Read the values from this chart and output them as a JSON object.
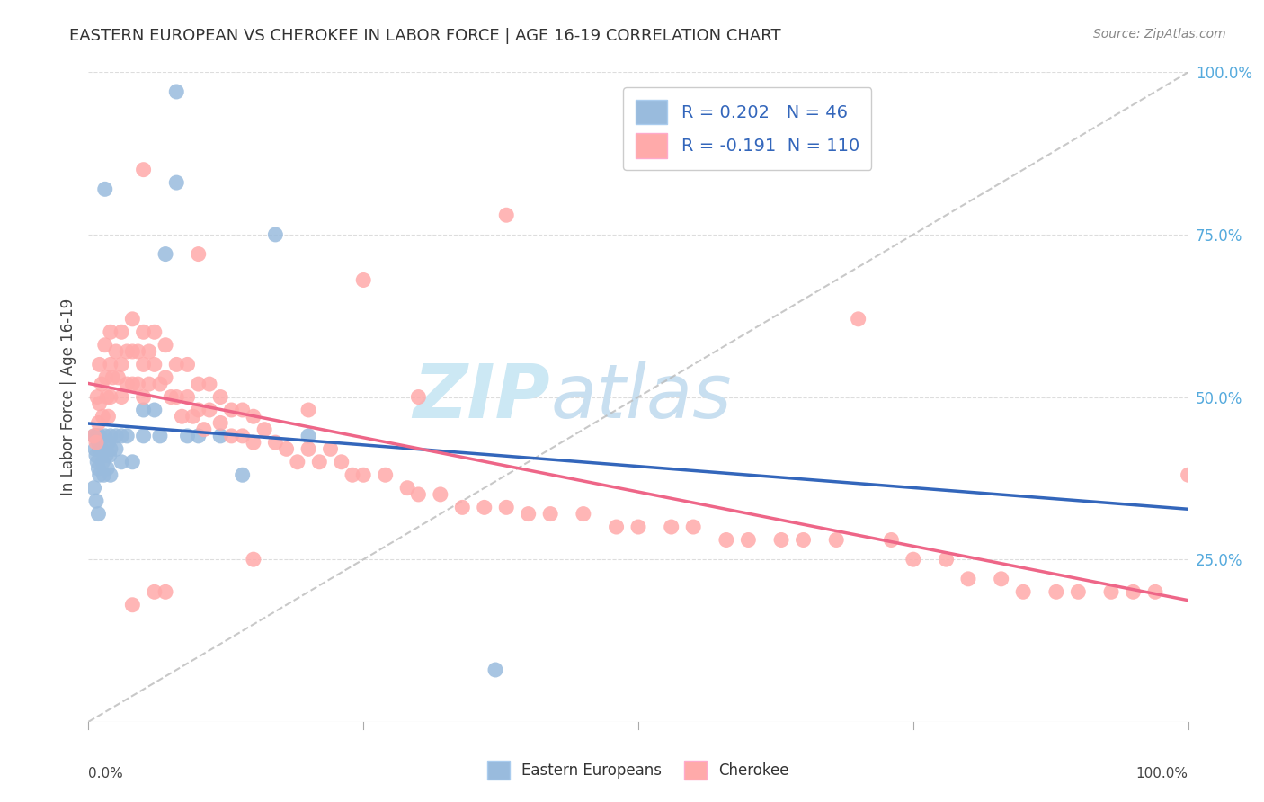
{
  "title": "EASTERN EUROPEAN VS CHEROKEE IN LABOR FORCE | AGE 16-19 CORRELATION CHART",
  "source": "Source: ZipAtlas.com",
  "ylabel": "In Labor Force | Age 16-19",
  "y_tick_labels": [
    "25.0%",
    "50.0%",
    "75.0%",
    "100.0%"
  ],
  "y_ticks": [
    0.25,
    0.5,
    0.75,
    1.0
  ],
  "r_eastern": 0.202,
  "n_eastern": 46,
  "r_cherokee": -0.191,
  "n_cherokee": 110,
  "blue_scatter_color": "#99BBDD",
  "pink_scatter_color": "#FFAAAA",
  "blue_line_color": "#3366BB",
  "pink_line_color": "#EE6688",
  "dash_line_color": "#BBBBBB",
  "watermark_color": "#CCE8F4",
  "legend_blue_text_color": "#3366BB",
  "legend_pink_text_color": "#333333",
  "right_tick_color": "#55AADD",
  "eastern_x": [
    0.005,
    0.006,
    0.007,
    0.007,
    0.008,
    0.008,
    0.009,
    0.009,
    0.01,
    0.01,
    0.01,
    0.012,
    0.013,
    0.014,
    0.015,
    0.016,
    0.017,
    0.018,
    0.019,
    0.02,
    0.02,
    0.02,
    0.025,
    0.025,
    0.03,
    0.03,
    0.035,
    0.04,
    0.05,
    0.05,
    0.06,
    0.065,
    0.07,
    0.08,
    0.09,
    0.1,
    0.12,
    0.14,
    0.17,
    0.2,
    0.37,
    0.005,
    0.007,
    0.009,
    0.015,
    0.08
  ],
  "eastern_y": [
    0.44,
    0.42,
    0.44,
    0.41,
    0.44,
    0.4,
    0.43,
    0.39,
    0.44,
    0.42,
    0.38,
    0.42,
    0.4,
    0.38,
    0.44,
    0.41,
    0.39,
    0.43,
    0.41,
    0.44,
    0.42,
    0.38,
    0.44,
    0.42,
    0.44,
    0.4,
    0.44,
    0.4,
    0.48,
    0.44,
    0.48,
    0.44,
    0.72,
    0.97,
    0.44,
    0.44,
    0.44,
    0.38,
    0.75,
    0.44,
    0.08,
    0.36,
    0.34,
    0.32,
    0.82,
    0.83
  ],
  "cherokee_x": [
    0.005,
    0.007,
    0.008,
    0.009,
    0.01,
    0.01,
    0.012,
    0.013,
    0.015,
    0.016,
    0.017,
    0.018,
    0.02,
    0.02,
    0.02,
    0.022,
    0.025,
    0.027,
    0.03,
    0.03,
    0.03,
    0.035,
    0.035,
    0.04,
    0.04,
    0.04,
    0.045,
    0.045,
    0.05,
    0.05,
    0.05,
    0.055,
    0.055,
    0.06,
    0.06,
    0.065,
    0.07,
    0.07,
    0.075,
    0.08,
    0.08,
    0.085,
    0.09,
    0.09,
    0.095,
    0.1,
    0.1,
    0.105,
    0.11,
    0.11,
    0.12,
    0.12,
    0.13,
    0.13,
    0.14,
    0.14,
    0.15,
    0.15,
    0.16,
    0.17,
    0.18,
    0.19,
    0.2,
    0.21,
    0.22,
    0.23,
    0.24,
    0.25,
    0.27,
    0.29,
    0.3,
    0.32,
    0.34,
    0.36,
    0.38,
    0.4,
    0.42,
    0.45,
    0.48,
    0.5,
    0.53,
    0.55,
    0.58,
    0.6,
    0.63,
    0.65,
    0.68,
    0.7,
    0.73,
    0.75,
    0.78,
    0.8,
    0.83,
    0.85,
    0.88,
    0.9,
    0.93,
    0.95,
    0.97,
    1.0,
    0.38,
    0.3,
    0.25,
    0.2,
    0.15,
    0.1,
    0.05,
    0.07,
    0.06,
    0.04
  ],
  "cherokee_y": [
    0.44,
    0.43,
    0.5,
    0.46,
    0.55,
    0.49,
    0.52,
    0.47,
    0.58,
    0.53,
    0.5,
    0.47,
    0.6,
    0.55,
    0.5,
    0.53,
    0.57,
    0.53,
    0.6,
    0.55,
    0.5,
    0.57,
    0.52,
    0.62,
    0.57,
    0.52,
    0.57,
    0.52,
    0.6,
    0.55,
    0.5,
    0.57,
    0.52,
    0.6,
    0.55,
    0.52,
    0.58,
    0.53,
    0.5,
    0.55,
    0.5,
    0.47,
    0.55,
    0.5,
    0.47,
    0.52,
    0.48,
    0.45,
    0.52,
    0.48,
    0.5,
    0.46,
    0.48,
    0.44,
    0.48,
    0.44,
    0.47,
    0.43,
    0.45,
    0.43,
    0.42,
    0.4,
    0.42,
    0.4,
    0.42,
    0.4,
    0.38,
    0.38,
    0.38,
    0.36,
    0.35,
    0.35,
    0.33,
    0.33,
    0.33,
    0.32,
    0.32,
    0.32,
    0.3,
    0.3,
    0.3,
    0.3,
    0.28,
    0.28,
    0.28,
    0.28,
    0.28,
    0.62,
    0.28,
    0.25,
    0.25,
    0.22,
    0.22,
    0.2,
    0.2,
    0.2,
    0.2,
    0.2,
    0.2,
    0.38,
    0.78,
    0.5,
    0.68,
    0.48,
    0.25,
    0.72,
    0.85,
    0.2,
    0.2,
    0.18
  ]
}
